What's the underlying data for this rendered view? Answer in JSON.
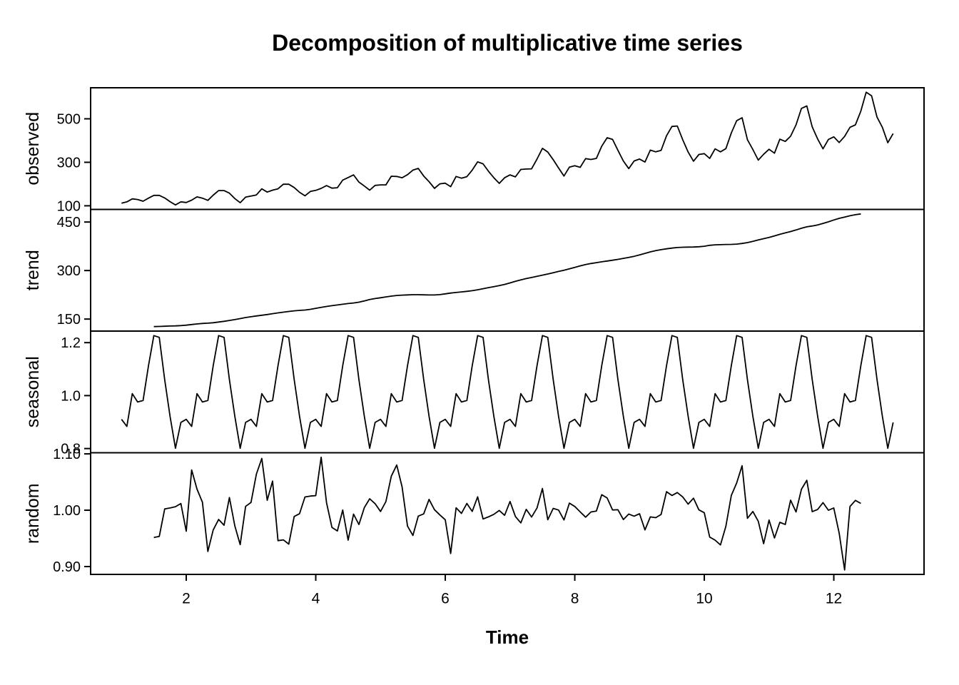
{
  "chart_data": {
    "type": "line",
    "title": "Decomposition of multiplicative time series",
    "xlabel": "Time",
    "line_color": "#000000",
    "background": "#ffffff",
    "grid": false,
    "legend": null,
    "x_start": 1,
    "frequency": 12,
    "xticks": [
      2,
      4,
      6,
      8,
      10,
      12
    ],
    "panels": [
      {
        "name": "observed",
        "yticks": [
          100,
          300,
          500
        ],
        "tick_format": "int"
      },
      {
        "name": "trend",
        "yticks": [
          150,
          300,
          450
        ],
        "tick_format": "int"
      },
      {
        "name": "seasonal",
        "yticks": [
          0.8,
          1.0,
          1.2
        ],
        "tick_format": "1dp"
      },
      {
        "name": "random",
        "yticks": [
          0.9,
          1.0,
          1.1
        ],
        "tick_format": "2dp"
      }
    ],
    "observed": [
      112,
      118,
      132,
      129,
      121,
      135,
      148,
      148,
      136,
      119,
      104,
      118,
      115,
      126,
      141,
      135,
      125,
      149,
      170,
      170,
      158,
      133,
      114,
      140,
      145,
      150,
      178,
      163,
      172,
      178,
      199,
      199,
      184,
      162,
      146,
      166,
      171,
      180,
      193,
      181,
      183,
      218,
      230,
      242,
      209,
      191,
      172,
      194,
      196,
      196,
      236,
      235,
      229,
      243,
      264,
      272,
      237,
      211,
      180,
      201,
      204,
      188,
      235,
      227,
      234,
      264,
      302,
      293,
      259,
      229,
      203,
      229,
      242,
      233,
      267,
      269,
      270,
      315,
      364,
      347,
      312,
      274,
      237,
      278,
      284,
      277,
      317,
      313,
      318,
      374,
      413,
      405,
      355,
      306,
      271,
      306,
      315,
      301,
      356,
      348,
      355,
      422,
      465,
      467,
      404,
      347,
      305,
      336,
      340,
      318,
      362,
      348,
      363,
      435,
      491,
      505,
      404,
      359,
      310,
      337,
      360,
      342,
      406,
      396,
      420,
      472,
      548,
      559,
      463,
      407,
      362,
      405,
      417,
      391,
      419,
      461,
      472,
      535,
      622,
      606,
      508,
      461,
      390,
      432
    ],
    "seasonal_factors": [
      0.9102,
      0.8836,
      1.0074,
      0.9759,
      0.9814,
      1.1128,
      1.2266,
      1.2199,
      1.0605,
      0.9218,
      0.8012,
      0.8988
    ],
    "trend_method": "centered moving average, window 12 (half-weight ends), NA at first/last 6 points",
    "random_method": "observed / (trend * seasonal)"
  }
}
